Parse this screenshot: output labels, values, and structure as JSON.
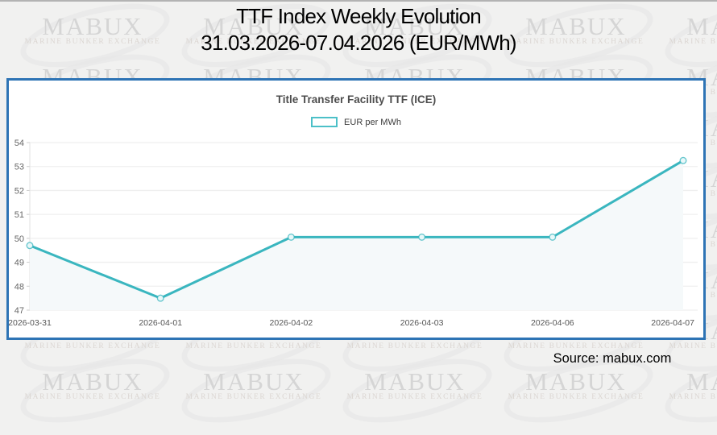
{
  "page": {
    "title_line1": "TTF Index Weekly Evolution",
    "title_line2": "31.03.2026-07.04.2026 (EUR/MWh)",
    "source": "Source: mabux.com"
  },
  "watermark": {
    "brand": "MABUX",
    "subtitle": "MARINE BUNKER EXCHANGE"
  },
  "panel": {
    "title": "Title Transfer Facility TTF (ICE)",
    "legend_label": "EUR per MWh",
    "border_color": "#2e74b5"
  },
  "chart_data": {
    "type": "line",
    "title": "Title Transfer Facility TTF (ICE)",
    "series": [
      {
        "name": "EUR per MWh",
        "values": [
          49.7,
          47.5,
          50.05,
          50.05,
          50.05,
          53.25
        ]
      }
    ],
    "categories": [
      "2026-03-31",
      "2026-04-01",
      "2026-04-02",
      "2026-04-03",
      "2026-04-06",
      "2026-04-07"
    ],
    "xlabel": "",
    "ylabel": "",
    "ylim": [
      47,
      54
    ],
    "ytick_step": 1,
    "yticks": [
      47,
      48,
      49,
      50,
      51,
      52,
      53,
      54
    ],
    "grid": true,
    "legend_position": "top",
    "line_color": "#3ab6bf",
    "marker_fill": "#e9f8f9",
    "area_fill": "#f5f9fa",
    "grid_color": "#efefef",
    "axis_label_color": "#666666"
  }
}
